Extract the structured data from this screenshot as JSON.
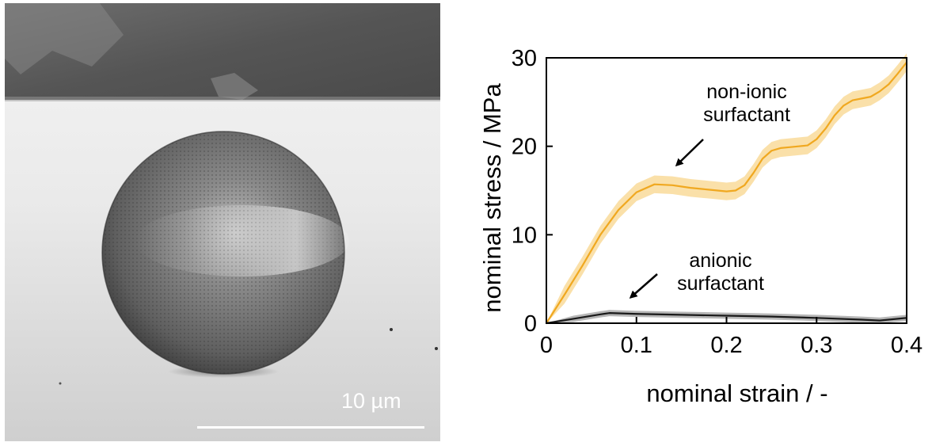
{
  "image_panel": {
    "scale_bar_label": "10 µm"
  },
  "chart_data": {
    "type": "line",
    "title": "",
    "xlabel": "nominal strain / -",
    "ylabel": "nominal stress / MPa",
    "xlim": [
      0,
      0.4
    ],
    "ylim": [
      0,
      30
    ],
    "x_ticks": [
      "0",
      "0.1",
      "0.2",
      "0.3",
      "0.4"
    ],
    "y_ticks": [
      "0",
      "10",
      "20",
      "30"
    ],
    "grid": false,
    "legend": "none",
    "series": [
      {
        "name": "non-ionic surfactant",
        "color": "#f0a820",
        "band_color": "#f8d68c",
        "x": [
          0,
          0.02,
          0.04,
          0.06,
          0.08,
          0.1,
          0.12,
          0.14,
          0.16,
          0.18,
          0.2,
          0.21,
          0.22,
          0.23,
          0.24,
          0.25,
          0.26,
          0.27,
          0.28,
          0.29,
          0.3,
          0.31,
          0.32,
          0.33,
          0.34,
          0.35,
          0.36,
          0.37,
          0.38,
          0.39,
          0.4
        ],
        "y": [
          0,
          3.2,
          6.5,
          10.0,
          12.8,
          14.8,
          15.7,
          15.6,
          15.3,
          15.1,
          14.9,
          15.0,
          15.6,
          17.0,
          18.6,
          19.5,
          19.8,
          19.9,
          20.0,
          20.1,
          20.8,
          22.0,
          23.5,
          24.6,
          25.2,
          25.4,
          25.6,
          26.2,
          27.0,
          28.2,
          29.5
        ]
      },
      {
        "name": "anionic surfactant",
        "color": "#1a1a1a",
        "band_color": "#7a7a7a",
        "x": [
          0,
          0.03,
          0.06,
          0.07,
          0.1,
          0.15,
          0.2,
          0.25,
          0.3,
          0.35,
          0.37,
          0.4
        ],
        "y": [
          0,
          0.5,
          1.0,
          1.15,
          1.05,
          0.95,
          0.85,
          0.75,
          0.6,
          0.4,
          0.3,
          0.6
        ]
      }
    ],
    "annotations": [
      {
        "lines": [
          "non-ionic",
          "surfactant"
        ],
        "at_x": 0.13,
        "at_y": 15.8
      },
      {
        "lines": [
          "anionic",
          "surfactant"
        ],
        "at_x": 0.085,
        "at_y": 2.5
      }
    ]
  }
}
